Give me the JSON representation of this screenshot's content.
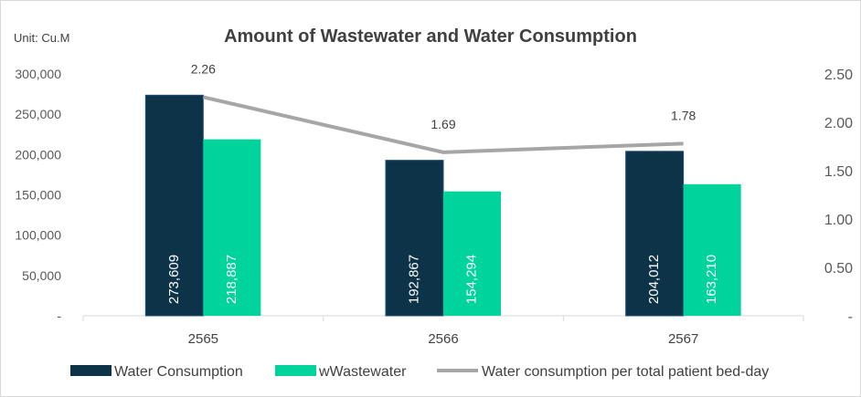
{
  "chart_data": {
    "type": "bar",
    "title": "Amount of Wastewater and Water Consumption",
    "unit_label": "Unit: Cu.M",
    "categories": [
      "2565",
      "2566",
      "2567"
    ],
    "series": [
      {
        "name": "Water Consumption",
        "type": "bar",
        "axis": "left",
        "color": "#0d3349",
        "values": [
          273609,
          192867,
          204012
        ],
        "labels": [
          "273,609",
          "192,867",
          "204,012"
        ]
      },
      {
        "name": "wWastewater",
        "type": "bar",
        "axis": "left",
        "color": "#00d49c",
        "values": [
          218887,
          154294,
          163210
        ],
        "labels": [
          "218,887",
          "154,294",
          "163,210"
        ]
      },
      {
        "name": "Water consumption per total patient bed-day",
        "type": "line",
        "axis": "right",
        "color": "#a6a6a6",
        "values": [
          2.26,
          1.69,
          1.78
        ],
        "labels": [
          "2.26",
          "1.69",
          "1.78"
        ]
      }
    ],
    "left_axis": {
      "ylim": [
        0,
        300000
      ],
      "ticks": [
        0,
        50000,
        100000,
        150000,
        200000,
        250000,
        300000
      ],
      "tick_labels": [
        "-",
        "50,000",
        "100,000",
        "150,000",
        "200,000",
        "250,000",
        "300,000"
      ]
    },
    "right_axis": {
      "ylim": [
        0,
        2.5
      ],
      "ticks": [
        0,
        0.5,
        1.0,
        1.5,
        2.0,
        2.5
      ],
      "tick_labels": [
        "-",
        "0.50",
        "1.00",
        "1.50",
        "2.00",
        "2.50"
      ]
    },
    "grid": false,
    "legend_position": "bottom"
  }
}
